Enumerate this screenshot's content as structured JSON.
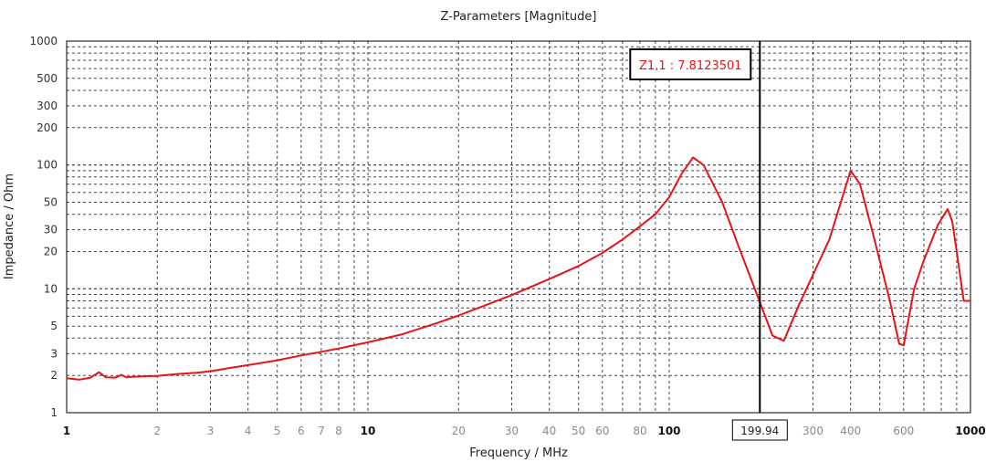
{
  "chart_data": {
    "type": "line",
    "title": "Z-Parameters [Magnitude]",
    "xlabel": "Frequency / MHz",
    "ylabel": "Impedance / Ohm",
    "xscale": "log",
    "yscale": "log",
    "xlim": [
      1,
      1000
    ],
    "ylim": [
      1,
      1000
    ],
    "grid": true,
    "x_ticks": [
      {
        "value": 1,
        "label": "1",
        "major": true
      },
      {
        "value": 2,
        "label": "2",
        "major": false
      },
      {
        "value": 3,
        "label": "3",
        "major": false
      },
      {
        "value": 4,
        "label": "4",
        "major": false
      },
      {
        "value": 5,
        "label": "5",
        "major": false
      },
      {
        "value": 6,
        "label": "6",
        "major": false
      },
      {
        "value": 7,
        "label": "7",
        "major": false
      },
      {
        "value": 8,
        "label": "8",
        "major": false
      },
      {
        "value": 10,
        "label": "10",
        "major": true
      },
      {
        "value": 20,
        "label": "20",
        "major": false
      },
      {
        "value": 30,
        "label": "30",
        "major": false
      },
      {
        "value": 40,
        "label": "40",
        "major": false
      },
      {
        "value": 50,
        "label": "50",
        "major": false
      },
      {
        "value": 60,
        "label": "60",
        "major": false
      },
      {
        "value": 80,
        "label": "80",
        "major": false
      },
      {
        "value": 100,
        "label": "100",
        "major": true
      },
      {
        "value": 300,
        "label": "300",
        "major": false
      },
      {
        "value": 400,
        "label": "400",
        "major": false
      },
      {
        "value": 600,
        "label": "600",
        "major": false
      },
      {
        "value": 1000,
        "label": "1000",
        "major": true
      }
    ],
    "y_ticks": [
      {
        "value": 1,
        "label": "1"
      },
      {
        "value": 2,
        "label": "2"
      },
      {
        "value": 3,
        "label": "3"
      },
      {
        "value": 5,
        "label": "5"
      },
      {
        "value": 10,
        "label": "10"
      },
      {
        "value": 20,
        "label": "20"
      },
      {
        "value": 30,
        "label": "30"
      },
      {
        "value": 50,
        "label": "50"
      },
      {
        "value": 100,
        "label": "100"
      },
      {
        "value": 200,
        "label": "200"
      },
      {
        "value": 300,
        "label": "300"
      },
      {
        "value": 500,
        "label": "500"
      },
      {
        "value": 1000,
        "label": "1000"
      }
    ],
    "series": [
      {
        "name": "Z1,1",
        "color": "#e8121a",
        "x": [
          1,
          1.1,
          1.2,
          1.28,
          1.35,
          1.45,
          1.52,
          1.58,
          1.65,
          1.8,
          2,
          2.3,
          2.7,
          3,
          3.5,
          4,
          5,
          6,
          7,
          8,
          10,
          13,
          17,
          20,
          25,
          30,
          40,
          50,
          60,
          70,
          80,
          90,
          100,
          110,
          120,
          130,
          150,
          170,
          199.94,
          220,
          240,
          270,
          300,
          340,
          380,
          400,
          430,
          480,
          540,
          580,
          600,
          650,
          700,
          780,
          840,
          870,
          900,
          950,
          1000
        ],
        "values": [
          1.9,
          1.85,
          1.92,
          2.12,
          1.93,
          1.92,
          2.02,
          1.93,
          1.95,
          1.97,
          1.98,
          2.05,
          2.1,
          2.16,
          2.3,
          2.42,
          2.65,
          2.9,
          3.1,
          3.3,
          3.7,
          4.3,
          5.3,
          6.1,
          7.5,
          8.9,
          12,
          15.3,
          19.5,
          25,
          32,
          40,
          55,
          85,
          115,
          100,
          50,
          22,
          7.81,
          4.2,
          3.8,
          7.5,
          13,
          25,
          60,
          90,
          70,
          25,
          8,
          3.6,
          3.5,
          10,
          17,
          33,
          44,
          35,
          20,
          8,
          8
        ]
      }
    ],
    "marker": {
      "x": 199.94,
      "x_label": "199.94",
      "label": "Z1,1 : 7.8123501",
      "value": 7.8123501
    }
  }
}
